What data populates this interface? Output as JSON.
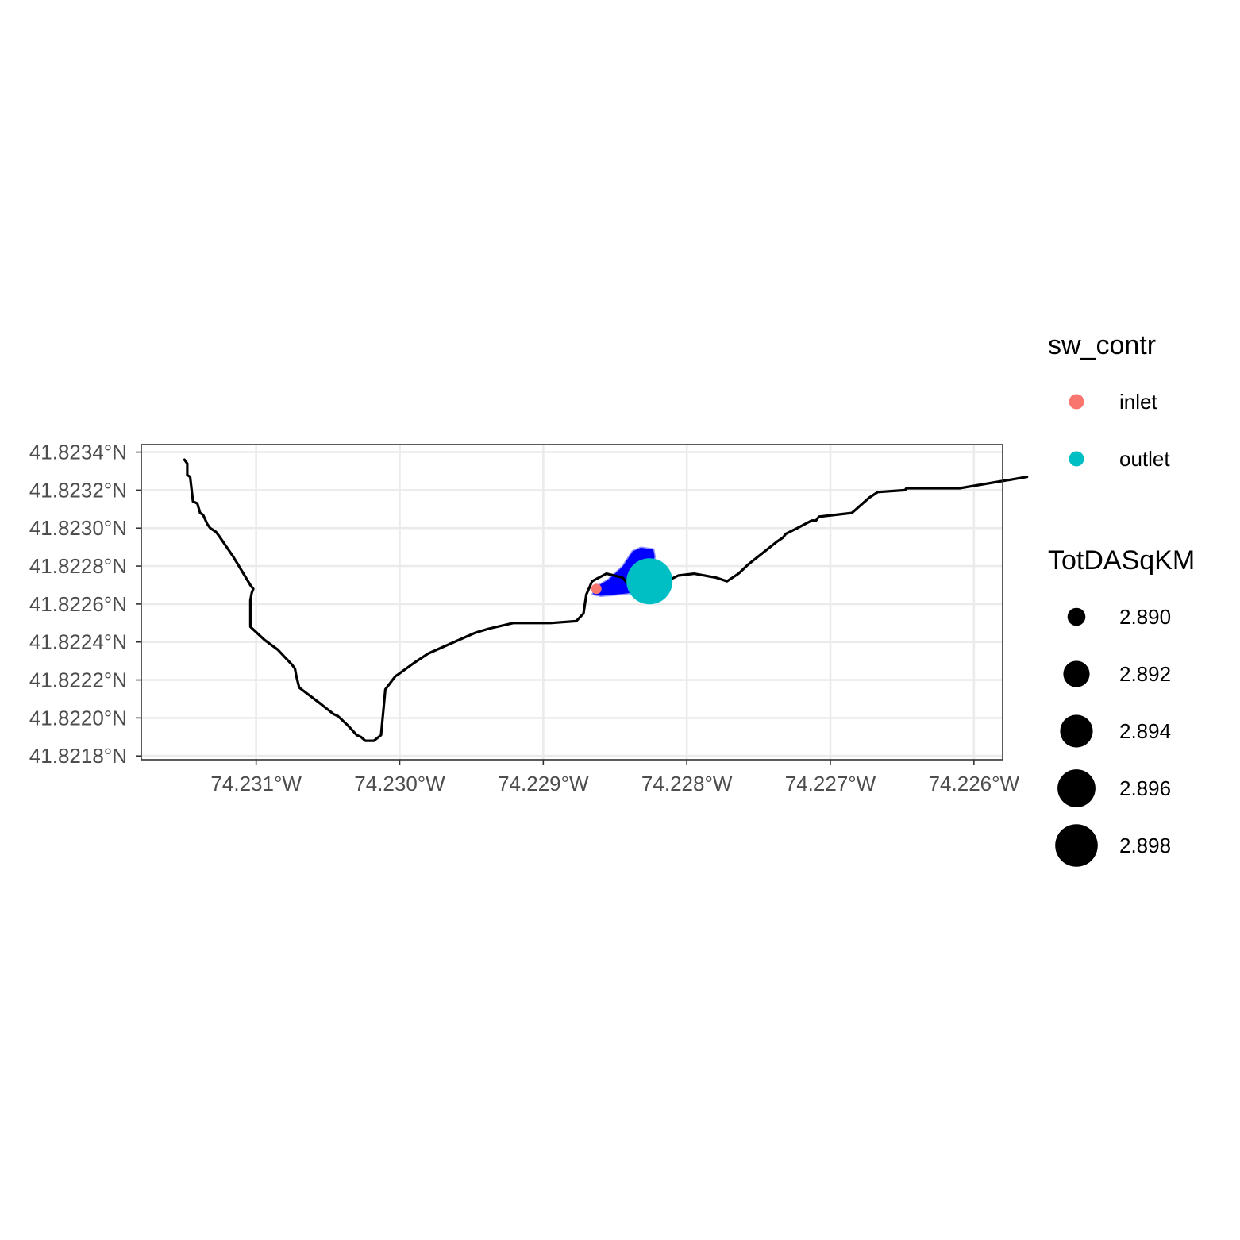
{
  "chart_data": {
    "type": "map",
    "title": "",
    "xlabel": "",
    "ylabel": "",
    "xlim": [
      -74.2318,
      -74.2258
    ],
    "ylim": [
      41.82178,
      41.82344
    ],
    "x_ticks": [
      {
        "value": -74.231,
        "label": "74.231°W"
      },
      {
        "value": -74.23,
        "label": "74.230°W"
      },
      {
        "value": -74.229,
        "label": "74.229°W"
      },
      {
        "value": -74.228,
        "label": "74.228°W"
      },
      {
        "value": -74.227,
        "label": "74.227°W"
      },
      {
        "value": -74.226,
        "label": "74.226°W"
      }
    ],
    "y_ticks": [
      {
        "value": 41.8234,
        "label": "41.8234°N"
      },
      {
        "value": 41.8232,
        "label": "41.8232°N"
      },
      {
        "value": 41.823,
        "label": "41.8230°N"
      },
      {
        "value": 41.8228,
        "label": "41.8228°N"
      },
      {
        "value": 41.8226,
        "label": "41.8226°N"
      },
      {
        "value": 41.8224,
        "label": "41.8224°N"
      },
      {
        "value": 41.8222,
        "label": "41.8222°N"
      },
      {
        "value": 41.822,
        "label": "41.8220°N"
      },
      {
        "value": 41.8218,
        "label": "41.8218°N"
      }
    ],
    "grid": true,
    "colors": {
      "grid": "#ebebeb",
      "panel_border": "#333333",
      "flowline": "#000000",
      "catchment": "#0000ff",
      "catchment_edge": "#9999ff",
      "inlet": "#f8766d",
      "outlet": "#00bfc4"
    },
    "flowline": [
      [
        -74.2315,
        41.82336
      ],
      [
        -74.23148,
        41.82334
      ],
      [
        -74.23148,
        41.82328
      ],
      [
        -74.23146,
        41.82327
      ],
      [
        -74.23144,
        41.82314
      ],
      [
        -74.23141,
        41.82313
      ],
      [
        -74.23139,
        41.82308
      ],
      [
        -74.23137,
        41.82307
      ],
      [
        -74.23134,
        41.82302
      ],
      [
        -74.23132,
        41.823
      ],
      [
        -74.23128,
        41.82298
      ],
      [
        -74.23126,
        41.82296
      ],
      [
        -74.23116,
        41.82285
      ],
      [
        -74.23104,
        41.8227
      ],
      [
        -74.23102,
        41.82268
      ],
      [
        -74.23103,
        41.82266
      ],
      [
        -74.23104,
        41.82262
      ],
      [
        -74.23104,
        41.82248
      ],
      [
        -74.23094,
        41.82241
      ],
      [
        -74.23085,
        41.82236
      ],
      [
        -74.23075,
        41.82228
      ],
      [
        -74.23073,
        41.82226
      ],
      [
        -74.23072,
        41.82222
      ],
      [
        -74.2307,
        41.82216
      ],
      [
        -74.23056,
        41.82208
      ],
      [
        -74.23046,
        41.82202
      ],
      [
        -74.23043,
        41.82201
      ],
      [
        -74.23036,
        41.82196
      ],
      [
        -74.2303,
        41.82191
      ],
      [
        -74.23027,
        41.8219
      ],
      [
        -74.23024,
        41.82188
      ],
      [
        -74.23018,
        41.82188
      ],
      [
        -74.23013,
        41.82191
      ],
      [
        -74.2301,
        41.82215
      ],
      [
        -74.23007,
        41.82218
      ],
      [
        -74.23003,
        41.82222
      ],
      [
        -74.23001,
        41.82223
      ],
      [
        -74.2299,
        41.82229
      ],
      [
        -74.2298,
        41.82234
      ],
      [
        -74.22956,
        41.82242
      ],
      [
        -74.22947,
        41.82245
      ],
      [
        -74.22938,
        41.82247
      ],
      [
        -74.22921,
        41.8225
      ],
      [
        -74.22915,
        41.8225
      ],
      [
        -74.22895,
        41.8225
      ],
      [
        -74.22877,
        41.82251
      ],
      [
        -74.22872,
        41.82255
      ],
      [
        -74.2287,
        41.82265
      ],
      [
        -74.22866,
        41.82272
      ],
      [
        -74.22856,
        41.82276
      ],
      [
        -74.22845,
        41.82274
      ],
      [
        -74.2284,
        41.8227
      ],
      [
        -74.22837,
        41.82267
      ],
      [
        -74.22833,
        41.82266
      ],
      [
        -74.22828,
        41.82266
      ],
      [
        -74.22822,
        41.82269
      ],
      [
        -74.22806,
        41.82275
      ],
      [
        -74.22795,
        41.82276
      ],
      [
        -74.2278,
        41.82274
      ],
      [
        -74.22772,
        41.82272
      ],
      [
        -74.22764,
        41.82276
      ],
      [
        -74.22757,
        41.82281
      ],
      [
        -74.22752,
        41.82284
      ],
      [
        -74.22737,
        41.82293
      ],
      [
        -74.22733,
        41.82295
      ],
      [
        -74.22731,
        41.82297
      ],
      [
        -74.22723,
        41.823
      ],
      [
        -74.22713,
        41.82304
      ],
      [
        -74.2271,
        41.82304
      ],
      [
        -74.22708,
        41.82306
      ],
      [
        -74.22685,
        41.82308
      ],
      [
        -74.22682,
        41.8231
      ],
      [
        -74.22673,
        41.82316
      ],
      [
        -74.22667,
        41.82319
      ],
      [
        -74.22648,
        41.8232
      ],
      [
        -74.22647,
        41.82321
      ],
      [
        -74.2261,
        41.82321
      ],
      [
        -74.22563,
        41.82327
      ]
    ],
    "catchment": [
      [
        -74.22864,
        41.82269
      ],
      [
        -74.22855,
        41.82273
      ],
      [
        -74.22845,
        41.8228
      ],
      [
        -74.22838,
        41.82288
      ],
      [
        -74.22832,
        41.8229
      ],
      [
        -74.22823,
        41.82289
      ],
      [
        -74.22822,
        41.82285
      ],
      [
        -74.22825,
        41.82272
      ],
      [
        -74.22834,
        41.82266
      ],
      [
        -74.22845,
        41.82265
      ],
      [
        -74.2286,
        41.82264
      ],
      [
        -74.22866,
        41.82265
      ]
    ],
    "points": [
      {
        "sw_contr": "inlet",
        "lon": -74.22863,
        "lat": 41.82268,
        "TotDASqKM": 2.8889
      },
      {
        "sw_contr": "outlet",
        "lon": -74.22826,
        "lat": 41.82272,
        "TotDASqKM": 2.9008
      }
    ],
    "size_scale": {
      "domain": [
        2.8889,
        2.9008
      ],
      "range": [
        6.5,
        29
      ]
    },
    "legend": {
      "placement": "right",
      "color": {
        "title": "sw_contr",
        "items": [
          {
            "label": "inlet",
            "color": "#f8766d"
          },
          {
            "label": "outlet",
            "color": "#00bfc4"
          }
        ]
      },
      "size": {
        "title": "TotDASqKM",
        "items": [
          {
            "label": "2.890",
            "value": 2.89
          },
          {
            "label": "2.892",
            "value": 2.892
          },
          {
            "label": "2.894",
            "value": 2.894
          },
          {
            "label": "2.896",
            "value": 2.896
          },
          {
            "label": "2.898",
            "value": 2.898
          }
        ]
      }
    }
  }
}
